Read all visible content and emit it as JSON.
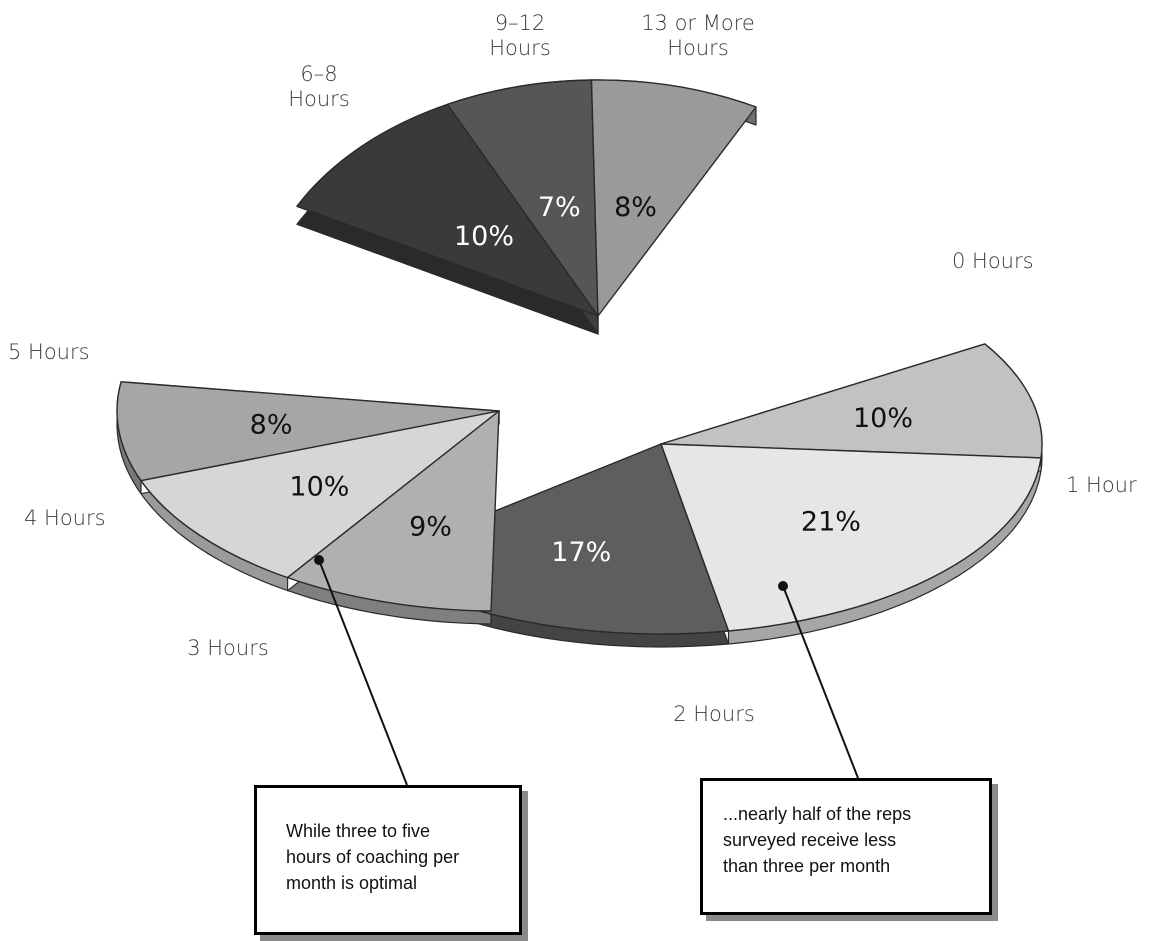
{
  "chart_data": {
    "type": "pie",
    "style": "exploded 3D pie, split into three groups",
    "slices": [
      {
        "category": "0 Hours",
        "value": 10,
        "label": "10%",
        "group": "right",
        "color": "#c2c2c2"
      },
      {
        "category": "1 Hour",
        "value": 21,
        "label": "21%",
        "group": "right",
        "color": "#e6e6e6"
      },
      {
        "category": "2 Hours",
        "value": 17,
        "label": "17%",
        "group": "right",
        "color": "#5e5e5e"
      },
      {
        "category": "3 Hours",
        "value": 8,
        "label": "8%",
        "group": "left",
        "color": "#a6a6a6"
      },
      {
        "category": "4 Hours",
        "value": 10,
        "label": "10%",
        "group": "left",
        "color": "#d6d6d6"
      },
      {
        "category": "5 Hours",
        "value": 9,
        "label": "9%",
        "group": "left",
        "color": "#b0b0b0"
      },
      {
        "category": "6–8 Hours",
        "value": 10,
        "label": "10%",
        "group": "top",
        "color": "#3a3a3a"
      },
      {
        "category": "9–12 Hours",
        "value": 7,
        "label": "7%",
        "group": "top",
        "color": "#565656"
      },
      {
        "category": "13 or More Hours",
        "value": 8,
        "label": "8%",
        "group": "top",
        "color": "#9a9a9a"
      }
    ],
    "category_labels": [
      {
        "id": "c68",
        "lines": [
          "6–8",
          "Hours"
        ]
      },
      {
        "id": "c912",
        "lines": [
          "9–12",
          "Hours"
        ]
      },
      {
        "id": "c13",
        "lines": [
          "13 or More",
          "Hours"
        ]
      },
      {
        "id": "c0",
        "lines": [
          "0 Hours"
        ]
      },
      {
        "id": "c1",
        "lines": [
          "1 Hour"
        ]
      },
      {
        "id": "c2",
        "lines": [
          "2 Hours"
        ]
      },
      {
        "id": "c3",
        "lines": [
          "3 Hours"
        ]
      },
      {
        "id": "c4",
        "lines": [
          "4 Hours"
        ]
      },
      {
        "id": "c5",
        "lines": [
          "5 Hours"
        ]
      }
    ],
    "annotations": [
      {
        "id": "left",
        "text": "While three to five hours of coaching per month is optimal",
        "lines": [
          "While three to five",
          "hours of coaching per",
          "month is optimal"
        ]
      },
      {
        "id": "right",
        "text": "...nearly half of the reps surveyed receive less than three per month",
        "lines": [
          "...nearly half of the reps",
          "surveyed receive less",
          "than three per month"
        ]
      }
    ]
  }
}
